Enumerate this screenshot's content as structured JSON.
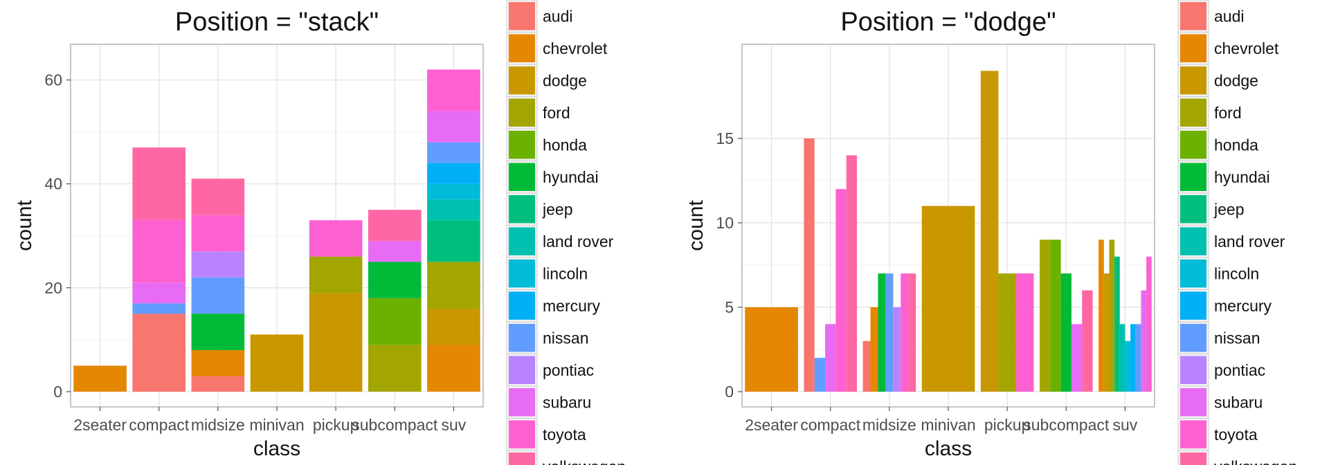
{
  "chart_data": [
    {
      "type": "bar",
      "position": "stack",
      "title": "Position = \"stack\"",
      "xlabel": "class",
      "ylabel": "count",
      "categories": [
        "2seater",
        "compact",
        "midsize",
        "minivan",
        "pickup",
        "subcompact",
        "suv"
      ],
      "ylim": [
        0,
        65
      ],
      "yticks": [
        0,
        20,
        40,
        60
      ],
      "grid": true,
      "legend": "right",
      "series": [
        {
          "name": "audi",
          "color": "#F8766D",
          "values": [
            0,
            15,
            3,
            0,
            0,
            0,
            0
          ]
        },
        {
          "name": "chevrolet",
          "color": "#E58700",
          "values": [
            5,
            0,
            5,
            0,
            0,
            0,
            9
          ]
        },
        {
          "name": "dodge",
          "color": "#C99800",
          "values": [
            0,
            0,
            0,
            11,
            19,
            0,
            7
          ]
        },
        {
          "name": "ford",
          "color": "#A3A500",
          "values": [
            0,
            0,
            0,
            0,
            7,
            9,
            9
          ]
        },
        {
          "name": "honda",
          "color": "#6BB100",
          "values": [
            0,
            0,
            0,
            0,
            0,
            9,
            0
          ]
        },
        {
          "name": "hyundai",
          "color": "#00BA38",
          "values": [
            0,
            0,
            7,
            0,
            0,
            7,
            0
          ]
        },
        {
          "name": "jeep",
          "color": "#00BF7D",
          "values": [
            0,
            0,
            0,
            0,
            0,
            0,
            8
          ]
        },
        {
          "name": "land rover",
          "color": "#00C0AF",
          "values": [
            0,
            0,
            0,
            0,
            0,
            0,
            4
          ]
        },
        {
          "name": "lincoln",
          "color": "#00BCD8",
          "values": [
            0,
            0,
            0,
            0,
            0,
            0,
            3
          ]
        },
        {
          "name": "mercury",
          "color": "#00B0F6",
          "values": [
            0,
            0,
            0,
            0,
            0,
            0,
            4
          ]
        },
        {
          "name": "nissan",
          "color": "#619CFF",
          "values": [
            0,
            2,
            7,
            0,
            0,
            0,
            4
          ]
        },
        {
          "name": "pontiac",
          "color": "#B983FF",
          "values": [
            0,
            0,
            5,
            0,
            0,
            0,
            0
          ]
        },
        {
          "name": "subaru",
          "color": "#E76BF3",
          "values": [
            0,
            4,
            0,
            0,
            0,
            4,
            6
          ]
        },
        {
          "name": "toyota",
          "color": "#FD61D1",
          "values": [
            0,
            12,
            7,
            0,
            7,
            0,
            8
          ]
        },
        {
          "name": "volkswagen",
          "color": "#FF67A4",
          "values": [
            0,
            14,
            7,
            0,
            0,
            6,
            0
          ]
        }
      ]
    },
    {
      "type": "bar",
      "position": "dodge",
      "title": "Position = \"dodge\"",
      "xlabel": "class",
      "ylabel": "count",
      "categories": [
        "2seater",
        "compact",
        "midsize",
        "minivan",
        "pickup",
        "subcompact",
        "suv"
      ],
      "ylim": [
        0,
        20
      ],
      "yticks": [
        0,
        5,
        10,
        15
      ],
      "grid": true,
      "legend": "right",
      "series": [
        {
          "name": "audi",
          "color": "#F8766D",
          "values": [
            0,
            15,
            3,
            0,
            0,
            0,
            0
          ]
        },
        {
          "name": "chevrolet",
          "color": "#E58700",
          "values": [
            5,
            0,
            5,
            0,
            0,
            0,
            9
          ]
        },
        {
          "name": "dodge",
          "color": "#C99800",
          "values": [
            0,
            0,
            0,
            11,
            19,
            0,
            7
          ]
        },
        {
          "name": "ford",
          "color": "#A3A500",
          "values": [
            0,
            0,
            0,
            0,
            7,
            9,
            9
          ]
        },
        {
          "name": "honda",
          "color": "#6BB100",
          "values": [
            0,
            0,
            0,
            0,
            0,
            9,
            0
          ]
        },
        {
          "name": "hyundai",
          "color": "#00BA38",
          "values": [
            0,
            0,
            7,
            0,
            0,
            7,
            0
          ]
        },
        {
          "name": "jeep",
          "color": "#00BF7D",
          "values": [
            0,
            0,
            0,
            0,
            0,
            0,
            8
          ]
        },
        {
          "name": "land rover",
          "color": "#00C0AF",
          "values": [
            0,
            0,
            0,
            0,
            0,
            0,
            4
          ]
        },
        {
          "name": "lincoln",
          "color": "#00BCD8",
          "values": [
            0,
            0,
            0,
            0,
            0,
            0,
            3
          ]
        },
        {
          "name": "mercury",
          "color": "#00B0F6",
          "values": [
            0,
            0,
            0,
            0,
            0,
            0,
            4
          ]
        },
        {
          "name": "nissan",
          "color": "#619CFF",
          "values": [
            0,
            2,
            7,
            0,
            0,
            0,
            4
          ]
        },
        {
          "name": "pontiac",
          "color": "#B983FF",
          "values": [
            0,
            0,
            5,
            0,
            0,
            0,
            0
          ]
        },
        {
          "name": "subaru",
          "color": "#E76BF3",
          "values": [
            0,
            4,
            0,
            0,
            0,
            4,
            6
          ]
        },
        {
          "name": "toyota",
          "color": "#FD61D1",
          "values": [
            0,
            12,
            7,
            0,
            7,
            0,
            8
          ]
        },
        {
          "name": "volkswagen",
          "color": "#FF67A4",
          "values": [
            0,
            14,
            7,
            0,
            0,
            6,
            0
          ]
        }
      ]
    }
  ]
}
